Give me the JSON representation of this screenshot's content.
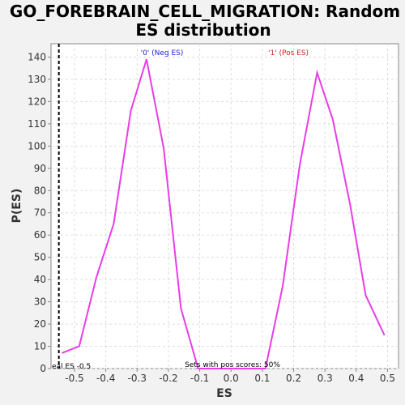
{
  "chart_data": {
    "type": "line",
    "title_lines": [
      "GO_FOREBRAIN_CELL_MIGRATION: Random",
      "ES distribution"
    ],
    "xlabel": "ES",
    "ylabel": "P(ES)",
    "xlim": [
      -0.575,
      0.535
    ],
    "ylim": [
      0,
      146
    ],
    "x_ticks": [
      -0.5,
      -0.4,
      -0.3,
      -0.2,
      -0.1,
      0.0,
      0.1,
      0.2,
      0.3,
      0.4,
      0.5
    ],
    "x_tick_labels": [
      "-0.5",
      "-0.4",
      "-0.3",
      "-0.2",
      "-0.1",
      "0.0",
      "0.1",
      "0.2",
      "0.3",
      "0.4",
      "0.5"
    ],
    "y_ticks": [
      0,
      10,
      20,
      30,
      40,
      50,
      60,
      70,
      80,
      90,
      100,
      110,
      120,
      130,
      140
    ],
    "y_tick_labels": [
      "0",
      "10",
      "20",
      "30",
      "40",
      "50",
      "60",
      "70",
      "80",
      "90",
      "100",
      "110",
      "120",
      "130",
      "140"
    ],
    "grid": true,
    "line_color": "#e83de8",
    "real_es_line_color": "#000000",
    "series": [
      {
        "x": [
          -0.54,
          -0.485,
          -0.43,
          -0.375,
          -0.32,
          -0.27,
          -0.215,
          -0.16,
          -0.105,
          -0.05,
          0.005,
          0.06,
          0.11,
          0.165,
          0.22,
          0.275,
          0.325,
          0.38,
          0.43,
          0.49
        ],
        "y": [
          7,
          10,
          41,
          65,
          116,
          139,
          99,
          27,
          0,
          0,
          0,
          0,
          0,
          37,
          92,
          133,
          112,
          74,
          33,
          15
        ]
      }
    ],
    "real_es": -0.55,
    "annotations": {
      "neg_label": "'0' (Neg ES)",
      "neg_color": "#2222cc",
      "pos_label": "'1' (Pos ES)",
      "pos_color": "#cc2222",
      "real_es_label": "eal ES -0.5",
      "sets_label": "Sets with pos scores: 50%"
    }
  }
}
